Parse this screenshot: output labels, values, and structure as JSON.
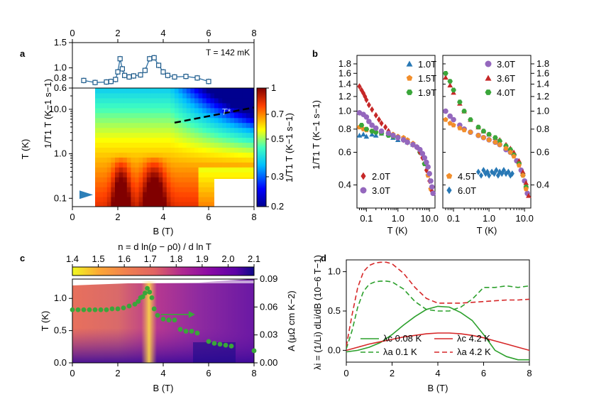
{
  "panel_labels": {
    "a": "a",
    "b": "b",
    "c": "c",
    "d": "d"
  },
  "colors": {
    "hex_fill": "#2d7fb8",
    "marker_stroke": "#1d5a8a",
    "green_pts": "#3aa63a",
    "red_curve": "#d62728",
    "green_curve": "#2ca02c",
    "dashed_black": "#000000"
  },
  "chart_data": [
    {
      "id": "a_top",
      "type": "line",
      "title": "T = 142 mK",
      "xlabel": "",
      "ylabel": "1/T1 T (K−1 s−1)",
      "xlim": [
        0,
        8
      ],
      "ylim": [
        0.6,
        1.5
      ],
      "xticks": [
        "0",
        "2",
        "4",
        "6",
        "8"
      ],
      "yticks": [
        "0.6",
        "0.8",
        "1.0",
        "1.5"
      ],
      "x": [
        0.5,
        1.0,
        1.5,
        1.7,
        1.9,
        2.0,
        2.1,
        2.2,
        2.3,
        2.5,
        2.7,
        3.0,
        3.2,
        3.4,
        3.6,
        3.8,
        4.0,
        4.2,
        4.5,
        5.0,
        5.5,
        6.0
      ],
      "y": [
        0.75,
        0.71,
        0.72,
        0.73,
        0.77,
        0.92,
        1.18,
        0.98,
        0.85,
        0.82,
        0.84,
        0.86,
        0.95,
        1.18,
        1.2,
        1.05,
        0.92,
        0.85,
        0.82,
        0.83,
        0.8,
        0.73
      ]
    },
    {
      "id": "a_map",
      "type": "heatmap",
      "xlabel": "B (T)",
      "ylabel": "T (K)",
      "xlim": [
        0,
        8
      ],
      "ylim": [
        0.065,
        30
      ],
      "xticks": [
        "0",
        "2",
        "4",
        "6",
        "8"
      ],
      "yticks": [
        "0.1",
        "1.0",
        "10.0"
      ],
      "colorbar": {
        "label": "1/T1 T (K−1 s−1)",
        "range": [
          0.2,
          1
        ],
        "ticks": [
          "0.2",
          "0.3",
          "0.5",
          "0.7",
          "1"
        ]
      },
      "annotation": "T*",
      "tstar_line": {
        "x": [
          4.5,
          8.0
        ],
        "y": [
          5.0,
          11.0
        ]
      },
      "arrow_at_T": 0.12
    },
    {
      "id": "b_left",
      "type": "scatter",
      "xlabel": "T (K)",
      "ylabel": "1/T1 T (K−1 s−1)",
      "xlim": [
        0.05,
        15
      ],
      "ylim": [
        0.3,
        2.0
      ],
      "xticks": [
        "0.1",
        "1.0",
        "10.0"
      ],
      "yticks": [
        "0.4",
        "0.6",
        "0.8",
        "1.0",
        "1.2",
        "1.4",
        "1.6",
        "1.8"
      ],
      "legend": [
        "1.0T",
        "1.5T",
        "1.9T",
        "2.0T",
        "3.0T"
      ],
      "series": [
        {
          "name": "1.0T",
          "marker": "triangle",
          "color": "#2878b5",
          "x": [
            0.06,
            0.08,
            0.1,
            0.15,
            0.2,
            0.3,
            0.5,
            0.7,
            1.0,
            1.5,
            2.0,
            3.0
          ],
          "y": [
            0.74,
            0.75,
            0.73,
            0.75,
            0.74,
            0.76,
            0.75,
            0.72,
            0.7,
            0.72,
            0.68,
            0.66
          ]
        },
        {
          "name": "1.5T",
          "marker": "pentagon",
          "color": "#f28e2b",
          "x": [
            0.06,
            0.08,
            0.1,
            0.15,
            0.2,
            0.3,
            0.5,
            0.7,
            1.0,
            1.5,
            2.0,
            3.0,
            4.0,
            5.0,
            7.0,
            9.0,
            11.0
          ],
          "y": [
            0.82,
            0.8,
            0.79,
            0.78,
            0.77,
            0.76,
            0.76,
            0.75,
            0.73,
            0.72,
            0.7,
            0.67,
            0.64,
            0.6,
            0.52,
            0.45,
            0.38
          ]
        },
        {
          "name": "1.9T",
          "marker": "hexagon",
          "color": "#3aa63a",
          "x": [
            0.07,
            0.1,
            0.15,
            0.2,
            0.3,
            0.5,
            0.7,
            1.0,
            1.5,
            2.0,
            3.0,
            5.0,
            7.0
          ],
          "y": [
            0.84,
            0.8,
            0.78,
            0.77,
            0.76,
            0.74,
            0.73,
            0.72,
            0.7,
            0.68,
            0.66,
            0.6,
            0.52
          ]
        },
        {
          "name": "2.0T",
          "marker": "diamond",
          "color": "#c62828",
          "x": [
            0.06,
            0.07,
            0.08,
            0.09,
            0.1,
            0.12,
            0.15,
            0.2,
            0.25,
            0.3,
            0.4,
            0.5,
            0.7,
            1.0,
            1.5,
            2.0,
            3.0,
            4.0,
            5.0,
            6.0,
            8.0,
            10.0,
            12.0
          ],
          "y": [
            1.36,
            1.3,
            1.25,
            1.2,
            1.15,
            1.08,
            1.02,
            0.95,
            0.9,
            0.86,
            0.82,
            0.78,
            0.74,
            0.72,
            0.7,
            0.68,
            0.66,
            0.64,
            0.6,
            0.56,
            0.48,
            0.42,
            0.37
          ]
        },
        {
          "name": "3.0T",
          "marker": "circle",
          "color": "#9467bd",
          "x": [
            0.06,
            0.08,
            0.1,
            0.12,
            0.15,
            0.2,
            0.3,
            0.5,
            0.7,
            1.0,
            1.5,
            2.0,
            3.0,
            4.0,
            5.0,
            6.0,
            7.0,
            8.0,
            9.0,
            10.0,
            11.0,
            12.0,
            13.0
          ],
          "y": [
            0.98,
            0.96,
            0.93,
            0.88,
            0.84,
            0.81,
            0.78,
            0.76,
            0.74,
            0.72,
            0.7,
            0.68,
            0.66,
            0.64,
            0.62,
            0.59,
            0.56,
            0.53,
            0.5,
            0.46,
            0.42,
            0.39,
            0.36
          ]
        }
      ]
    },
    {
      "id": "b_right",
      "type": "scatter",
      "xlabel": "T (K)",
      "ylabel": "",
      "xlim": [
        0.05,
        15
      ],
      "ylim": [
        0.3,
        2.0
      ],
      "xticks": [
        "0.1",
        "1.0",
        "10.0"
      ],
      "yticks": [
        "0.4",
        "0.6",
        "0.8",
        "1.0",
        "1.2",
        "1.4",
        "1.6",
        "1.8"
      ],
      "legend": [
        "3.0T",
        "3.6T",
        "4.0T",
        "4.5T",
        "6.0T"
      ],
      "series": [
        {
          "name": "3.0T",
          "marker": "circle",
          "color": "#9467bd",
          "x": [
            0.06,
            0.08,
            0.1,
            0.15,
            0.2,
            0.3,
            0.5,
            0.7,
            1.0,
            1.5,
            2.0,
            3.0,
            4.0,
            5.0,
            6.0,
            8.0,
            10.0,
            12.0
          ],
          "y": [
            1.0,
            0.94,
            0.9,
            0.84,
            0.8,
            0.77,
            0.74,
            0.72,
            0.7,
            0.68,
            0.66,
            0.62,
            0.6,
            0.58,
            0.54,
            0.48,
            0.42,
            0.36
          ]
        },
        {
          "name": "3.6T",
          "marker": "triangle",
          "color": "#c62828",
          "x": [
            0.06,
            0.08,
            0.1,
            0.15,
            0.2,
            0.3,
            0.5,
            0.7,
            1.0,
            1.5,
            2.0,
            3.0,
            4.0,
            5.0,
            7.0,
            9.0,
            11.0,
            13.0
          ],
          "y": [
            1.52,
            1.38,
            1.26,
            1.1,
            1.0,
            0.9,
            0.82,
            0.78,
            0.75,
            0.72,
            0.7,
            0.66,
            0.63,
            0.6,
            0.54,
            0.47,
            0.41,
            0.35
          ]
        },
        {
          "name": "4.0T",
          "marker": "hexagon",
          "color": "#3aa63a",
          "x": [
            0.06,
            0.08,
            0.1,
            0.15,
            0.2,
            0.3,
            0.5,
            0.7,
            1.0,
            1.5,
            2.0,
            3.0,
            4.0,
            5.0,
            7.0,
            9.0,
            11.0
          ],
          "y": [
            1.6,
            1.45,
            1.3,
            1.12,
            1.0,
            0.9,
            0.82,
            0.78,
            0.75,
            0.72,
            0.69,
            0.65,
            0.62,
            0.58,
            0.52,
            0.45,
            0.39
          ]
        },
        {
          "name": "4.5T",
          "marker": "pentagon",
          "color": "#f28e2b",
          "x": [
            0.06,
            0.08,
            0.1,
            0.15,
            0.2,
            0.3,
            0.5,
            0.7,
            1.0,
            1.5,
            2.0,
            3.0,
            4.0,
            5.0,
            7.0,
            9.0,
            11.0
          ],
          "y": [
            0.9,
            0.86,
            0.84,
            0.81,
            0.79,
            0.77,
            0.74,
            0.72,
            0.7,
            0.68,
            0.66,
            0.63,
            0.6,
            0.57,
            0.51,
            0.45,
            0.38
          ]
        },
        {
          "name": "6.0T",
          "marker": "diamond",
          "color": "#2878b5",
          "x": [
            0.5,
            0.6,
            0.7,
            0.8,
            0.9,
            1.0,
            1.2,
            1.4,
            1.6,
            1.8,
            2.0,
            2.3,
            2.6,
            3.0,
            3.5,
            4.0,
            4.5
          ],
          "y": [
            0.47,
            0.45,
            0.48,
            0.46,
            0.47,
            0.45,
            0.47,
            0.46,
            0.48,
            0.45,
            0.47,
            0.46,
            0.48,
            0.46,
            0.47,
            0.45,
            0.46
          ]
        }
      ]
    },
    {
      "id": "c",
      "type": "heatmap",
      "title": "n = d ln(ρ − ρ0) / d ln T",
      "xlabel": "B (T)",
      "ylabel": "T (K)",
      "y2label": "A (μΩ cm K−2)",
      "xlim": [
        0,
        8
      ],
      "ylim": [
        0,
        1.3
      ],
      "y2lim": [
        0,
        0.09
      ],
      "xticks": [
        "0",
        "2",
        "4",
        "6",
        "8"
      ],
      "yticks": [
        "0.0",
        "0.5",
        "1.0"
      ],
      "y2ticks": [
        "0.00",
        "0.03",
        "0.06",
        "0.09"
      ],
      "colorbar": {
        "range": [
          1.4,
          2.1
        ],
        "ticks": [
          "1.4",
          "1.5",
          "1.6",
          "1.7",
          "1.8",
          "1.9",
          "2.0",
          "2.1"
        ]
      },
      "A_points": {
        "x": [
          0.0,
          0.25,
          0.5,
          0.75,
          1.0,
          1.25,
          1.5,
          1.75,
          2.0,
          2.25,
          2.5,
          2.75,
          2.9,
          3.0,
          3.1,
          3.2,
          3.3,
          3.4,
          3.5,
          3.6,
          3.75,
          4.0,
          4.25,
          4.5,
          4.75,
          5.0,
          5.25,
          5.5,
          6.0,
          6.25,
          6.5,
          6.75,
          7.0,
          8.0
        ],
        "y": [
          0.057,
          0.057,
          0.057,
          0.057,
          0.057,
          0.057,
          0.057,
          0.058,
          0.058,
          0.059,
          0.061,
          0.063,
          0.066,
          0.07,
          0.071,
          0.075,
          0.08,
          0.076,
          0.07,
          0.058,
          0.051,
          0.047,
          0.046,
          0.046,
          0.036,
          0.034,
          0.034,
          0.032,
          0.023,
          0.021,
          0.02,
          0.019,
          0.018,
          0.013
        ]
      },
      "arrow": {
        "x0": 3.9,
        "x1": 5.4,
        "y": 0.052
      }
    },
    {
      "id": "d",
      "type": "line",
      "xlabel": "B (T)",
      "ylabel": "λi = (1/Li) dLi/dB (10−6 T−1)",
      "xlim": [
        0,
        8
      ],
      "ylim": [
        -0.15,
        1.15
      ],
      "xticks": [
        "0",
        "2",
        "4",
        "6",
        "8"
      ],
      "yticks": [
        "0.0",
        "0.5",
        "1.0"
      ],
      "legend": [
        "λc 0.08 K",
        "λc 4.2 K",
        "λa 0.1 K",
        "λa 4.2 K"
      ],
      "series": [
        {
          "name": "λc 0.08 K",
          "style": "solid",
          "color": "#2ca02c",
          "x": [
            0,
            0.5,
            1,
            1.5,
            2,
            2.5,
            3,
            3.5,
            4,
            4.5,
            5,
            5.5,
            6,
            6.5,
            7,
            7.5,
            8
          ],
          "y": [
            -0.02,
            0.0,
            0.04,
            0.1,
            0.2,
            0.32,
            0.43,
            0.52,
            0.56,
            0.55,
            0.48,
            0.38,
            0.2,
            0.0,
            -0.08,
            -0.12,
            -0.12
          ]
        },
        {
          "name": "λc 4.2 K",
          "style": "solid",
          "color": "#d62728",
          "x": [
            0,
            0.5,
            1,
            1.5,
            2,
            2.5,
            3,
            3.5,
            4,
            4.5,
            5,
            5.5,
            6,
            6.5,
            7,
            7.5,
            8
          ],
          "y": [
            0.0,
            0.04,
            0.08,
            0.11,
            0.14,
            0.17,
            0.19,
            0.21,
            0.22,
            0.22,
            0.21,
            0.19,
            0.16,
            0.12,
            0.08,
            0.04,
            0.0
          ]
        },
        {
          "name": "λa 0.1 K",
          "style": "dashed",
          "color": "#2ca02c",
          "x": [
            0,
            0.25,
            0.5,
            0.75,
            1,
            1.25,
            1.5,
            1.75,
            2,
            2.5,
            3,
            3.5,
            4,
            4.5,
            5,
            5.5,
            6,
            6.5,
            7,
            7.5,
            8
          ],
          "y": [
            0.02,
            0.25,
            0.55,
            0.75,
            0.84,
            0.87,
            0.88,
            0.88,
            0.87,
            0.78,
            0.62,
            0.52,
            0.5,
            0.5,
            0.55,
            0.65,
            0.8,
            0.8,
            0.82,
            0.8,
            0.82
          ]
        },
        {
          "name": "λa 4.2 K",
          "style": "dashed",
          "color": "#d62728",
          "x": [
            0,
            0.25,
            0.5,
            0.75,
            1,
            1.25,
            1.5,
            1.75,
            2,
            2.5,
            3,
            3.5,
            4,
            4.5,
            5,
            5.5,
            6,
            6.5,
            7,
            7.5,
            8
          ],
          "y": [
            0.05,
            0.45,
            0.8,
            1.0,
            1.08,
            1.11,
            1.12,
            1.12,
            1.1,
            0.98,
            0.8,
            0.66,
            0.6,
            0.6,
            0.6,
            0.61,
            0.62,
            0.63,
            0.64,
            0.64,
            0.65
          ]
        }
      ]
    }
  ]
}
